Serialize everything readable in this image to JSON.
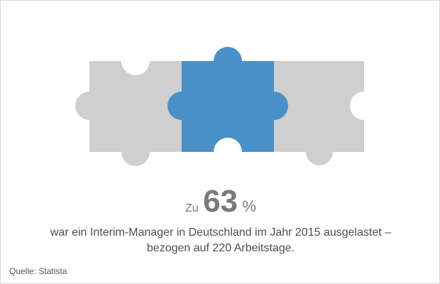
{
  "colors": {
    "accent": "#4a90c8",
    "piece_gray": "#cfcfcf",
    "text_gray": "#7a7a7a"
  },
  "graphic": {
    "pieces": [
      "puzzle-piece-left",
      "puzzle-piece-center",
      "puzzle-piece-right"
    ]
  },
  "stat": {
    "prefix": "Zu",
    "value": "63",
    "unit": "%"
  },
  "description": {
    "line1": "war ein Interim-Manager in Deutschland im Jahr 2015 ausgelastet –",
    "line2": "bezogen auf 220 Arbeitstage."
  },
  "source": "Quelle: Statista"
}
